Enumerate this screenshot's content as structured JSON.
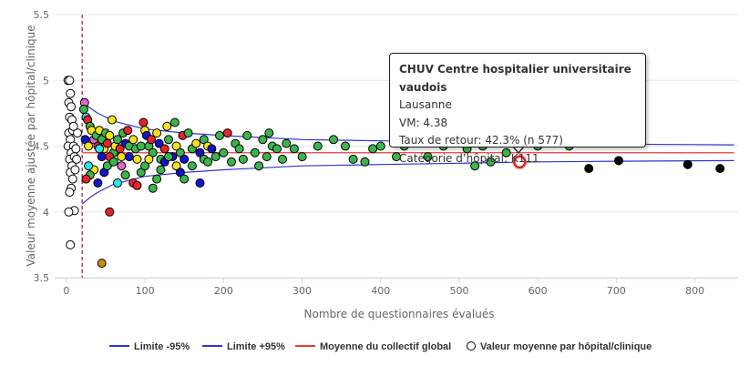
{
  "chart_data": {
    "type": "scatter",
    "xlabel": "Nombre de questionnaires évalués",
    "ylabel": "Valeur moyenne ajustée par hôpital/clinique",
    "xlim": [
      -15,
      855
    ],
    "ylim": [
      3.5,
      5.5
    ],
    "x_ticks": [
      "0",
      "100",
      "200",
      "300",
      "400",
      "500",
      "600",
      "700",
      "800"
    ],
    "y_ticks": [
      "3.5",
      "4",
      "4.5",
      "5",
      "5.5"
    ],
    "grid": "horizontal",
    "legend_position": "bottom",
    "vertical_reference_x": 20,
    "global_mean": 4.45,
    "limit_upper": [
      [
        20,
        4.84
      ],
      [
        30,
        4.79
      ],
      [
        40,
        4.75
      ],
      [
        60,
        4.69
      ],
      [
        80,
        4.66
      ],
      [
        100,
        4.63
      ],
      [
        150,
        4.6
      ],
      [
        200,
        4.58
      ],
      [
        300,
        4.55
      ],
      [
        400,
        4.54
      ],
      [
        500,
        4.53
      ],
      [
        600,
        4.52
      ],
      [
        700,
        4.515
      ],
      [
        850,
        4.51
      ]
    ],
    "limit_lower": [
      [
        20,
        4.06
      ],
      [
        30,
        4.11
      ],
      [
        40,
        4.15
      ],
      [
        60,
        4.21
      ],
      [
        80,
        4.24
      ],
      [
        100,
        4.27
      ],
      [
        150,
        4.3
      ],
      [
        200,
        4.32
      ],
      [
        300,
        4.35
      ],
      [
        400,
        4.36
      ],
      [
        500,
        4.37
      ],
      [
        600,
        4.38
      ],
      [
        700,
        4.385
      ],
      [
        850,
        4.39
      ]
    ],
    "series": [
      {
        "name": "Limite -95%",
        "color": "#3333cc"
      },
      {
        "name": "Limite +95%",
        "color": "#3333cc"
      },
      {
        "name": "Moyenne du collectif global",
        "color": "#e83c3c"
      },
      {
        "name": "Valeur moyenne par hôpital/clinique",
        "color": "#ffffff"
      }
    ],
    "categories": [
      {
        "code": "white",
        "color": "#ffffff"
      },
      {
        "code": "green",
        "color": "#3cb44b"
      },
      {
        "code": "yellow",
        "color": "#f5e11e"
      },
      {
        "code": "red",
        "color": "#e8232d"
      },
      {
        "code": "blue",
        "color": "#1414c8"
      },
      {
        "code": "black",
        "color": "#000000"
      },
      {
        "code": "cyan",
        "color": "#28e6f0"
      },
      {
        "code": "pink",
        "color": "#e664d2"
      },
      {
        "code": "gold",
        "color": "#c88c14"
      }
    ],
    "points": [
      [
        2,
        5.0,
        "white"
      ],
      [
        4,
        5.0,
        "white"
      ],
      [
        5,
        4.9,
        "white"
      ],
      [
        3,
        4.83,
        "white"
      ],
      [
        6,
        4.8,
        "white"
      ],
      [
        4,
        4.72,
        "white"
      ],
      [
        7,
        4.7,
        "white"
      ],
      [
        3,
        4.6,
        "white"
      ],
      [
        8,
        4.62,
        "white"
      ],
      [
        5,
        4.55,
        "white"
      ],
      [
        2,
        4.5,
        "white"
      ],
      [
        9,
        4.5,
        "white"
      ],
      [
        6,
        4.45,
        "white"
      ],
      [
        4,
        4.4,
        "white"
      ],
      [
        10,
        4.42,
        "white"
      ],
      [
        7,
        4.35,
        "white"
      ],
      [
        5,
        4.3,
        "white"
      ],
      [
        11,
        4.32,
        "white"
      ],
      [
        8,
        4.25,
        "white"
      ],
      [
        6,
        4.18,
        "white"
      ],
      [
        4,
        4.15,
        "white"
      ],
      [
        10,
        4.01,
        "white"
      ],
      [
        5,
        3.75,
        "white"
      ],
      [
        3,
        4.0,
        "white"
      ],
      [
        12,
        4.48,
        "white"
      ],
      [
        14,
        4.6,
        "white"
      ],
      [
        9,
        4.65,
        "white"
      ],
      [
        13,
        4.4,
        "white"
      ],
      [
        23,
        4.83,
        "pink"
      ],
      [
        22,
        4.78,
        "green"
      ],
      [
        25,
        4.72,
        "cyan"
      ],
      [
        27,
        4.7,
        "red"
      ],
      [
        30,
        4.65,
        "green"
      ],
      [
        32,
        4.62,
        "yellow"
      ],
      [
        24,
        4.55,
        "blue"
      ],
      [
        28,
        4.5,
        "yellow"
      ],
      [
        35,
        4.55,
        "pink"
      ],
      [
        38,
        4.58,
        "green"
      ],
      [
        40,
        4.5,
        "red"
      ],
      [
        42,
        4.62,
        "yellow"
      ],
      [
        45,
        4.55,
        "green"
      ],
      [
        48,
        4.48,
        "yellow"
      ],
      [
        50,
        4.6,
        "green"
      ],
      [
        52,
        4.52,
        "red"
      ],
      [
        55,
        4.58,
        "yellow"
      ],
      [
        58,
        4.7,
        "yellow"
      ],
      [
        60,
        4.45,
        "green"
      ],
      [
        62,
        4.5,
        "yellow"
      ],
      [
        65,
        4.55,
        "green"
      ],
      [
        68,
        4.48,
        "red"
      ],
      [
        70,
        4.42,
        "yellow"
      ],
      [
        72,
        4.6,
        "green"
      ],
      [
        75,
        4.52,
        "blue"
      ],
      [
        78,
        4.62,
        "red"
      ],
      [
        80,
        4.5,
        "green"
      ],
      [
        85,
        4.55,
        "yellow"
      ],
      [
        88,
        4.48,
        "green"
      ],
      [
        90,
        4.4,
        "yellow"
      ],
      [
        95,
        4.5,
        "green"
      ],
      [
        98,
        4.68,
        "red"
      ],
      [
        100,
        4.62,
        "yellow"
      ],
      [
        102,
        4.58,
        "blue"
      ],
      [
        105,
        4.5,
        "green"
      ],
      [
        108,
        4.55,
        "red"
      ],
      [
        110,
        4.45,
        "green"
      ],
      [
        115,
        4.6,
        "yellow"
      ],
      [
        118,
        4.52,
        "blue"
      ],
      [
        120,
        4.4,
        "green"
      ],
      [
        125,
        4.48,
        "red"
      ],
      [
        128,
        4.65,
        "yellow"
      ],
      [
        130,
        4.55,
        "green"
      ],
      [
        135,
        4.42,
        "blue"
      ],
      [
        138,
        4.68,
        "green"
      ],
      [
        140,
        4.5,
        "yellow"
      ],
      [
        145,
        4.45,
        "green"
      ],
      [
        148,
        4.58,
        "red"
      ],
      [
        150,
        4.4,
        "blue"
      ],
      [
        155,
        4.6,
        "green"
      ],
      [
        160,
        4.48,
        "green"
      ],
      [
        165,
        4.52,
        "yellow"
      ],
      [
        170,
        4.45,
        "blue"
      ],
      [
        175,
        4.55,
        "green"
      ],
      [
        180,
        4.5,
        "yellow"
      ],
      [
        185,
        4.48,
        "blue"
      ],
      [
        190,
        4.42,
        "green"
      ],
      [
        195,
        4.58,
        "green"
      ],
      [
        200,
        4.45,
        "green"
      ],
      [
        205,
        4.6,
        "red"
      ],
      [
        210,
        4.38,
        "green"
      ],
      [
        215,
        4.52,
        "green"
      ],
      [
        220,
        4.48,
        "green"
      ],
      [
        225,
        4.4,
        "green"
      ],
      [
        230,
        4.58,
        "green"
      ],
      [
        240,
        4.45,
        "green"
      ],
      [
        245,
        4.35,
        "green"
      ],
      [
        250,
        4.55,
        "green"
      ],
      [
        255,
        4.42,
        "green"
      ],
      [
        258,
        4.6,
        "green"
      ],
      [
        262,
        4.5,
        "green"
      ],
      [
        268,
        4.48,
        "green"
      ],
      [
        275,
        4.4,
        "green"
      ],
      [
        280,
        4.52,
        "green"
      ],
      [
        290,
        4.48,
        "green"
      ],
      [
        300,
        4.42,
        "green"
      ],
      [
        320,
        4.5,
        "green"
      ],
      [
        340,
        4.55,
        "green"
      ],
      [
        355,
        4.5,
        "green"
      ],
      [
        365,
        4.4,
        "green"
      ],
      [
        380,
        4.38,
        "green"
      ],
      [
        390,
        4.48,
        "green"
      ],
      [
        400,
        4.5,
        "green"
      ],
      [
        420,
        4.42,
        "green"
      ],
      [
        430,
        4.5,
        "green"
      ],
      [
        460,
        4.42,
        "green"
      ],
      [
        480,
        4.5,
        "green"
      ],
      [
        510,
        4.48,
        "green"
      ],
      [
        530,
        4.5,
        "green"
      ],
      [
        560,
        4.45,
        "green"
      ],
      [
        600,
        4.5,
        "green"
      ],
      [
        640,
        4.5,
        "green"
      ],
      [
        520,
        4.35,
        "green"
      ],
      [
        540,
        4.38,
        "green"
      ],
      [
        42,
        4.48,
        "cyan"
      ],
      [
        35,
        4.32,
        "yellow"
      ],
      [
        30,
        4.28,
        "green"
      ],
      [
        28,
        4.35,
        "cyan"
      ],
      [
        25,
        4.25,
        "red"
      ],
      [
        45,
        4.42,
        "blue"
      ],
      [
        40,
        4.22,
        "blue"
      ],
      [
        48,
        4.3,
        "blue"
      ],
      [
        52,
        4.35,
        "green"
      ],
      [
        55,
        4.42,
        "red"
      ],
      [
        60,
        4.38,
        "green"
      ],
      [
        65,
        4.22,
        "cyan"
      ],
      [
        70,
        4.35,
        "pink"
      ],
      [
        75,
        4.28,
        "green"
      ],
      [
        80,
        4.42,
        "blue"
      ],
      [
        85,
        4.22,
        "red"
      ],
      [
        90,
        4.2,
        "red"
      ],
      [
        95,
        4.3,
        "green"
      ],
      [
        100,
        4.35,
        "green"
      ],
      [
        105,
        4.4,
        "yellow"
      ],
      [
        110,
        4.18,
        "green"
      ],
      [
        115,
        4.25,
        "green"
      ],
      [
        120,
        4.32,
        "green"
      ],
      [
        125,
        4.38,
        "blue"
      ],
      [
        130,
        4.42,
        "green"
      ],
      [
        140,
        4.35,
        "yellow"
      ],
      [
        145,
        4.3,
        "blue"
      ],
      [
        150,
        4.25,
        "green"
      ],
      [
        160,
        4.35,
        "green"
      ],
      [
        170,
        4.22,
        "blue"
      ],
      [
        175,
        4.4,
        "green"
      ],
      [
        180,
        4.38,
        "green"
      ],
      [
        55,
        4.0,
        "red"
      ],
      [
        45,
        3.61,
        "gold"
      ],
      [
        665,
        4.33,
        "black"
      ],
      [
        703,
        4.39,
        "black"
      ],
      [
        791,
        4.36,
        "black"
      ],
      [
        832,
        4.33,
        "black"
      ]
    ],
    "highlight": {
      "x": 577,
      "y": 4.38
    }
  },
  "tooltip": {
    "name": "CHUV Centre hospitalier universitaire vaudois",
    "city": "Lausanne",
    "vm": "VM: 4.38",
    "return_rate": "Taux de retour: 42.3% (n 577)",
    "category": "Catégorie d’hôpital: K111"
  }
}
